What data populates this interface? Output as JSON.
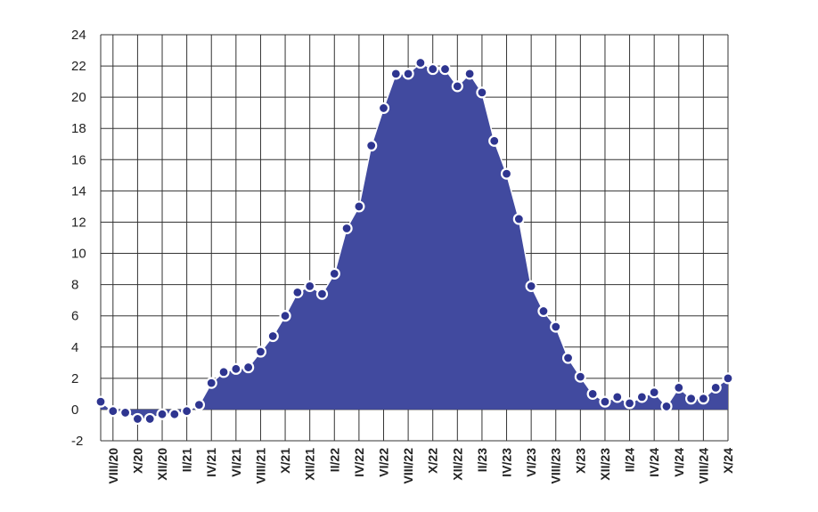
{
  "chart_data": {
    "type": "area",
    "title": "",
    "xlabel": "",
    "ylabel": "",
    "ylim": [
      -2,
      24
    ],
    "yticks": [
      -2,
      0,
      2,
      4,
      6,
      8,
      10,
      12,
      14,
      16,
      18,
      20,
      22,
      24
    ],
    "grid": true,
    "x_tick_labels": [
      "VIII/20",
      "X/20",
      "XII/20",
      "II/21",
      "IV/21",
      "VI/21",
      "VIII/21",
      "X/21",
      "XII/21",
      "II/22",
      "IV/22",
      "VI/22",
      "VIII/22",
      "X/22",
      "XII/22",
      "II/23",
      "IV/23",
      "VI/23",
      "VIII/23",
      "X/23",
      "XII/23",
      "II/24",
      "IV/24",
      "VI/24",
      "VIII/24",
      "X/24"
    ],
    "x": [
      "VII/20",
      "VIII/20",
      "IX/20",
      "X/20",
      "XI/20",
      "XII/20",
      "I/21",
      "II/21",
      "III/21",
      "IV/21",
      "V/21",
      "VI/21",
      "VII/21",
      "VIII/21",
      "IX/21",
      "X/21",
      "XI/21",
      "XII/21",
      "I/22",
      "II/22",
      "III/22",
      "IV/22",
      "V/22",
      "VI/22",
      "VII/22",
      "VIII/22",
      "IX/22",
      "X/22",
      "XI/22",
      "XII/22",
      "I/23",
      "II/23",
      "III/23",
      "IV/23",
      "V/23",
      "VI/23",
      "VII/23",
      "VIII/23",
      "IX/23",
      "X/23",
      "XI/23",
      "XII/23",
      "I/24",
      "II/24",
      "III/24",
      "IV/24",
      "V/24",
      "VI/24",
      "VII/24",
      "VIII/24",
      "IX/24",
      "X/24"
    ],
    "values": [
      0.5,
      -0.1,
      -0.2,
      -0.6,
      -0.6,
      -0.3,
      -0.3,
      -0.1,
      0.3,
      1.7,
      2.4,
      2.6,
      2.7,
      3.7,
      4.7,
      6.0,
      7.5,
      7.9,
      7.4,
      8.7,
      11.6,
      13.0,
      16.9,
      19.3,
      21.5,
      21.5,
      22.2,
      21.8,
      21.8,
      20.7,
      21.5,
      20.3,
      17.2,
      15.1,
      12.2,
      7.9,
      6.3,
      5.3,
      3.3,
      2.1,
      1.0,
      0.5,
      0.8,
      0.4,
      0.8,
      1.1,
      0.2,
      1.4,
      0.7,
      0.7,
      1.4,
      2.0
    ],
    "colors": {
      "fill": "#414a9f",
      "marker_fill": "#2e3590",
      "marker_stroke": "#ffffff",
      "grid": "#333333"
    }
  }
}
